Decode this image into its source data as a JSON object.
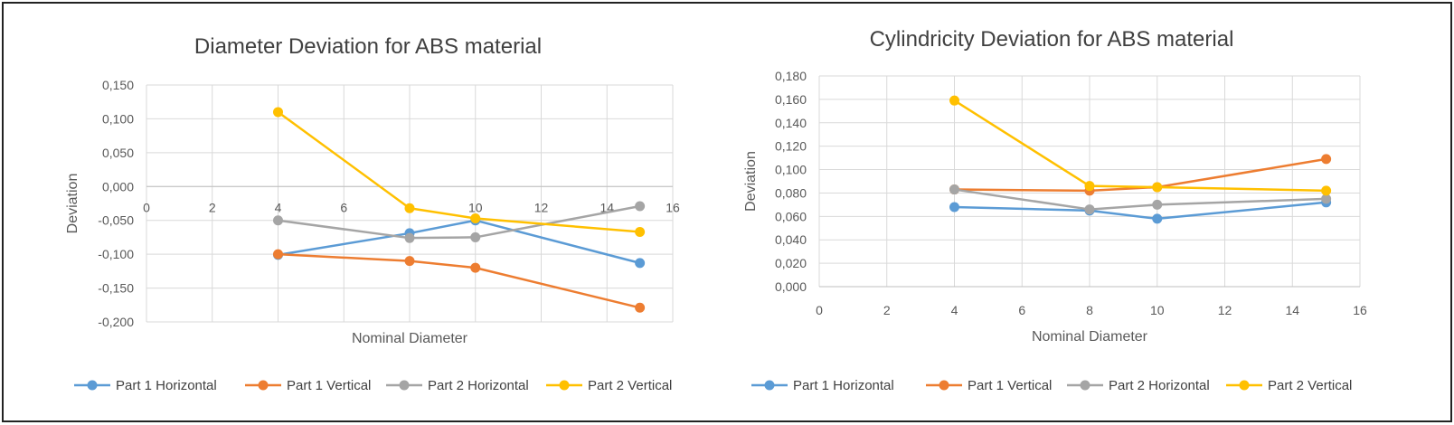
{
  "chart_data": [
    {
      "type": "line",
      "title": "Diameter Deviation for ABS material",
      "xlabel": "Nominal Diameter",
      "ylabel": "Deviation",
      "xlim": [
        0,
        16
      ],
      "ylim": [
        -0.2,
        0.15
      ],
      "xticks": [
        0,
        2,
        4,
        6,
        8,
        10,
        12,
        14,
        16
      ],
      "yticks": [
        -0.2,
        -0.15,
        -0.1,
        -0.05,
        0,
        0.05,
        0.1,
        0.15
      ],
      "y_decimals": 3,
      "decimal_separator": ",",
      "x": [
        4,
        8,
        10,
        15
      ],
      "grid": true,
      "legend_position": "bottom",
      "series": [
        {
          "name": "Part 1 Horizontal",
          "color": "#5B9BD5",
          "values": [
            -0.101,
            -0.069,
            -0.05,
            -0.113
          ]
        },
        {
          "name": "Part 1 Vertical",
          "color": "#ED7D31",
          "values": [
            -0.1,
            -0.11,
            -0.12,
            -0.179
          ]
        },
        {
          "name": "Part 2 Horizontal",
          "color": "#A5A5A5",
          "values": [
            -0.05,
            -0.076,
            -0.075,
            -0.029
          ]
        },
        {
          "name": "Part 2 Vertical",
          "color": "#FFC000",
          "values": [
            0.11,
            -0.032,
            -0.047,
            -0.067
          ]
        }
      ]
    },
    {
      "type": "line",
      "title": "Cylindricity Deviation for ABS material",
      "xlabel": "Nominal Diameter",
      "ylabel": "Deviation",
      "xlim": [
        0,
        16
      ],
      "ylim": [
        0,
        0.18
      ],
      "xticks": [
        0,
        2,
        4,
        6,
        8,
        10,
        12,
        14,
        16
      ],
      "yticks": [
        0,
        0.02,
        0.04,
        0.06,
        0.08,
        0.1,
        0.12,
        0.14,
        0.16,
        0.18
      ],
      "y_decimals": 3,
      "decimal_separator": ",",
      "x": [
        4,
        8,
        10,
        15
      ],
      "grid": true,
      "legend_position": "bottom",
      "series": [
        {
          "name": "Part 1 Horizontal",
          "color": "#5B9BD5",
          "values": [
            0.068,
            0.065,
            0.058,
            0.072
          ]
        },
        {
          "name": "Part 1 Vertical",
          "color": "#ED7D31",
          "values": [
            0.083,
            0.082,
            0.085,
            0.109
          ]
        },
        {
          "name": "Part 2 Horizontal",
          "color": "#A5A5A5",
          "values": [
            0.083,
            0.066,
            0.07,
            0.075
          ]
        },
        {
          "name": "Part 2 Vertical",
          "color": "#FFC000",
          "values": [
            0.159,
            0.086,
            0.085,
            0.082
          ]
        }
      ]
    }
  ]
}
